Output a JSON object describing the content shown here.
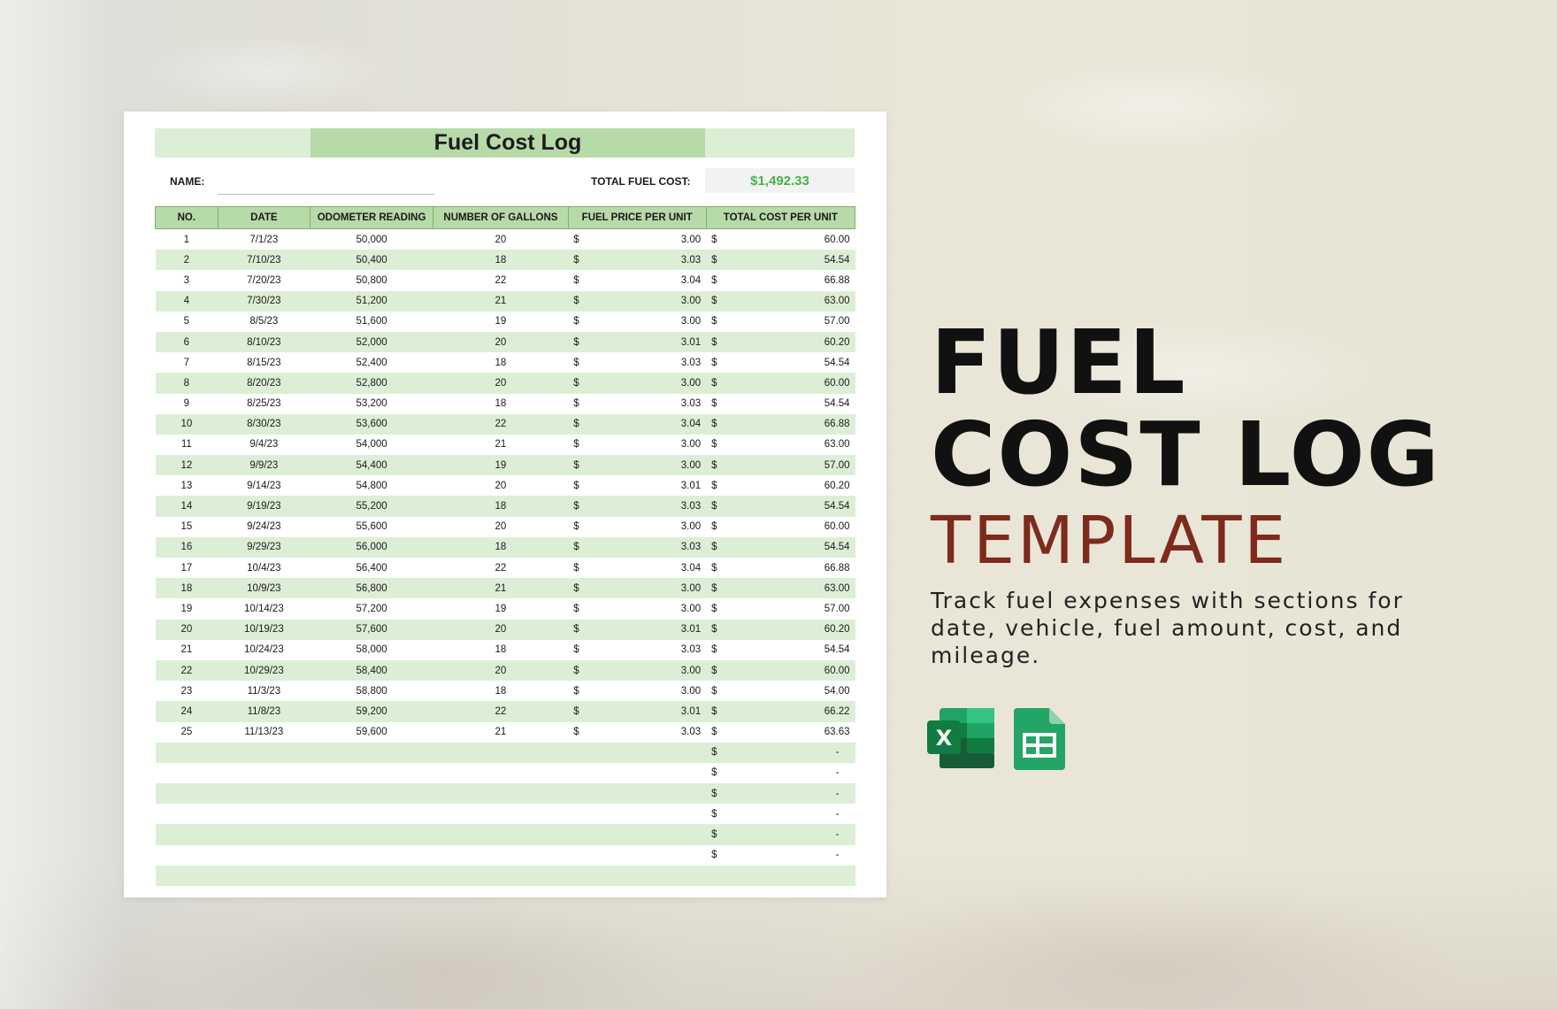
{
  "sheet": {
    "title": "Fuel Cost Log",
    "name_label": "NAME:",
    "total_label": "TOTAL FUEL COST:",
    "total_value": "$1,492.33",
    "columns": [
      "NO.",
      "DATE",
      "ODOMETER READING",
      "NUMBER OF GALLONS",
      "FUEL PRICE PER UNIT",
      "TOTAL COST PER UNIT"
    ],
    "currency_symbol": "$",
    "empty_total": "-",
    "rows": [
      {
        "no": "1",
        "date": "7/1/23",
        "odometer": "50,000",
        "gallons": "20",
        "price": "3.00",
        "total": "60.00"
      },
      {
        "no": "2",
        "date": "7/10/23",
        "odometer": "50,400",
        "gallons": "18",
        "price": "3.03",
        "total": "54.54"
      },
      {
        "no": "3",
        "date": "7/20/23",
        "odometer": "50,800",
        "gallons": "22",
        "price": "3.04",
        "total": "66.88"
      },
      {
        "no": "4",
        "date": "7/30/23",
        "odometer": "51,200",
        "gallons": "21",
        "price": "3.00",
        "total": "63.00"
      },
      {
        "no": "5",
        "date": "8/5/23",
        "odometer": "51,600",
        "gallons": "19",
        "price": "3.00",
        "total": "57.00"
      },
      {
        "no": "6",
        "date": "8/10/23",
        "odometer": "52,000",
        "gallons": "20",
        "price": "3.01",
        "total": "60.20"
      },
      {
        "no": "7",
        "date": "8/15/23",
        "odometer": "52,400",
        "gallons": "18",
        "price": "3.03",
        "total": "54.54"
      },
      {
        "no": "8",
        "date": "8/20/23",
        "odometer": "52,800",
        "gallons": "20",
        "price": "3.00",
        "total": "60.00"
      },
      {
        "no": "9",
        "date": "8/25/23",
        "odometer": "53,200",
        "gallons": "18",
        "price": "3.03",
        "total": "54.54"
      },
      {
        "no": "10",
        "date": "8/30/23",
        "odometer": "53,600",
        "gallons": "22",
        "price": "3.04",
        "total": "66.88"
      },
      {
        "no": "11",
        "date": "9/4/23",
        "odometer": "54,000",
        "gallons": "21",
        "price": "3.00",
        "total": "63.00"
      },
      {
        "no": "12",
        "date": "9/9/23",
        "odometer": "54,400",
        "gallons": "19",
        "price": "3.00",
        "total": "57.00"
      },
      {
        "no": "13",
        "date": "9/14/23",
        "odometer": "54,800",
        "gallons": "20",
        "price": "3.01",
        "total": "60.20"
      },
      {
        "no": "14",
        "date": "9/19/23",
        "odometer": "55,200",
        "gallons": "18",
        "price": "3.03",
        "total": "54.54"
      },
      {
        "no": "15",
        "date": "9/24/23",
        "odometer": "55,600",
        "gallons": "20",
        "price": "3.00",
        "total": "60.00"
      },
      {
        "no": "16",
        "date": "9/29/23",
        "odometer": "56,000",
        "gallons": "18",
        "price": "3.03",
        "total": "54.54"
      },
      {
        "no": "17",
        "date": "10/4/23",
        "odometer": "56,400",
        "gallons": "22",
        "price": "3.04",
        "total": "66.88"
      },
      {
        "no": "18",
        "date": "10/9/23",
        "odometer": "56,800",
        "gallons": "21",
        "price": "3.00",
        "total": "63.00"
      },
      {
        "no": "19",
        "date": "10/14/23",
        "odometer": "57,200",
        "gallons": "19",
        "price": "3.00",
        "total": "57.00"
      },
      {
        "no": "20",
        "date": "10/19/23",
        "odometer": "57,600",
        "gallons": "20",
        "price": "3.01",
        "total": "60.20"
      },
      {
        "no": "21",
        "date": "10/24/23",
        "odometer": "58,000",
        "gallons": "18",
        "price": "3.03",
        "total": "54.54"
      },
      {
        "no": "22",
        "date": "10/29/23",
        "odometer": "58,400",
        "gallons": "20",
        "price": "3.00",
        "total": "60.00"
      },
      {
        "no": "23",
        "date": "11/3/23",
        "odometer": "58,800",
        "gallons": "18",
        "price": "3.00",
        "total": "54.00"
      },
      {
        "no": "24",
        "date": "11/8/23",
        "odometer": "59,200",
        "gallons": "22",
        "price": "3.01",
        "total": "66.22"
      },
      {
        "no": "25",
        "date": "11/13/23",
        "odometer": "59,600",
        "gallons": "21",
        "price": "3.03",
        "total": "63.63"
      }
    ],
    "empty_rows_with_total": 6,
    "blank_rows": 1
  },
  "hero": {
    "line1": "FUEL",
    "line2": "COST LOG",
    "line3": "TEMPLATE",
    "description": "Track fuel expenses with sections for date, vehicle, fuel amount, cost, and mileage."
  },
  "icons": [
    "excel-icon",
    "google-sheets-icon"
  ],
  "colors": {
    "header_green": "#b6daa8",
    "stripe_green": "#dcefd6",
    "total_green": "#46b24a",
    "template_red": "#7e2a1c"
  }
}
